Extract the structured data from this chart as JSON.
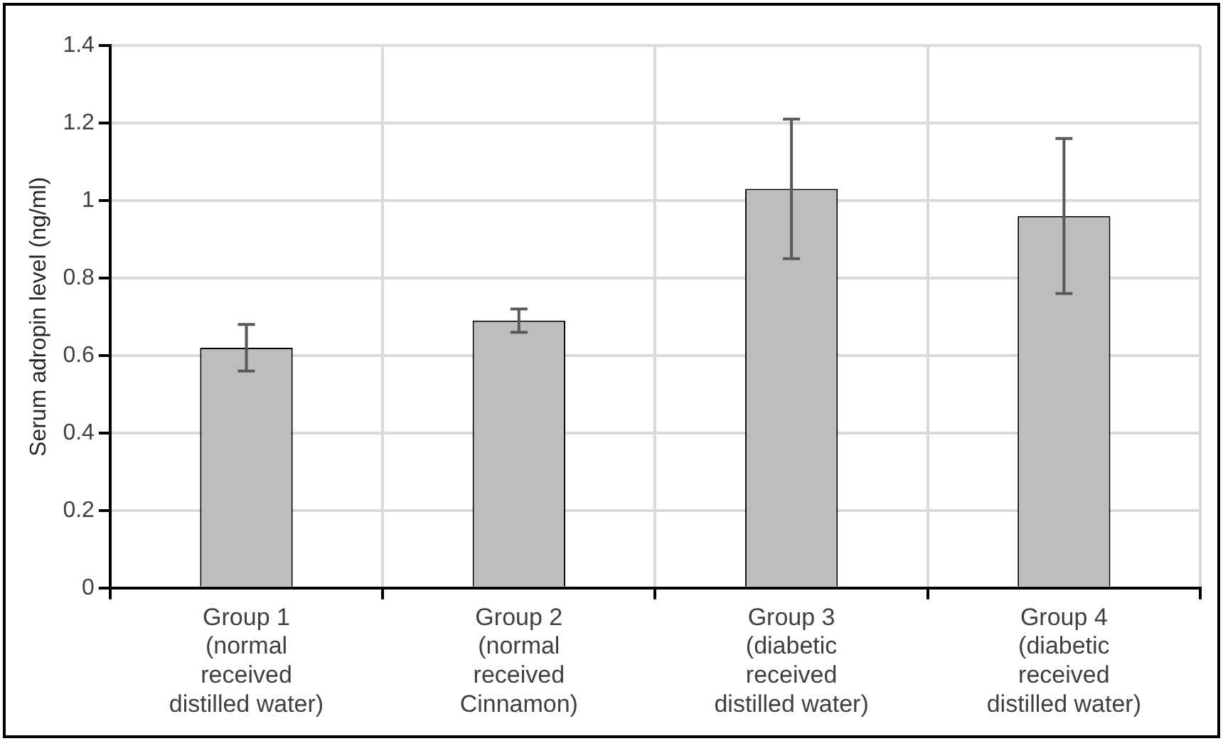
{
  "chart_data": {
    "type": "bar",
    "ylabel": "Serum adropin level (ng/ml)",
    "categories": [
      "Group 1\n(normal\nreceived\ndistilled water)",
      "Group 2\n(normal\nreceived\nCinnamon)",
      "Group 3\n(diabetic\nreceived\ndistilled water)",
      "Group 4\n(diabetic\nreceived\ndistilled water)"
    ],
    "values": [
      0.62,
      0.69,
      1.03,
      0.96
    ],
    "errors": [
      0.06,
      0.03,
      0.18,
      0.2
    ],
    "color": "#bdbdbd",
    "ylim": [
      0,
      1.4
    ],
    "yticks": [
      0,
      0.2,
      0.4,
      0.6,
      0.8,
      1,
      1.2,
      1.4
    ],
    "grid": true,
    "legend": false
  }
}
